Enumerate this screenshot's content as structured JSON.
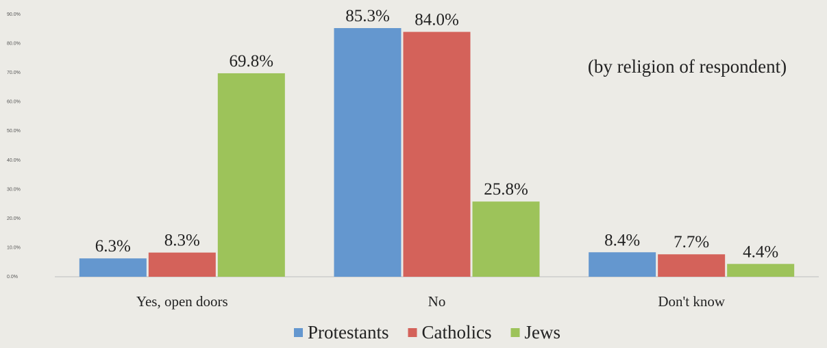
{
  "chart_data": {
    "type": "bar",
    "title": "",
    "annotation": "(by religion of respondent)",
    "xlabel": "",
    "ylabel": "",
    "ylim": [
      0,
      90
    ],
    "yticks": [
      "0.0%",
      "10.0%",
      "20.0%",
      "30.0%",
      "40.0%",
      "50.0%",
      "60.0%",
      "70.0%",
      "80.0%",
      "90.0%"
    ],
    "categories": [
      "Yes, open doors",
      "No",
      "Don't know"
    ],
    "series": [
      {
        "name": "Protestants",
        "color": "#6497cf",
        "values": [
          6.3,
          85.3,
          8.4
        ],
        "labels": [
          "6.3%",
          "85.3%",
          "8.4%"
        ]
      },
      {
        "name": "Catholics",
        "color": "#d4625a",
        "values": [
          8.3,
          84.0,
          7.7
        ],
        "labels": [
          "8.3%",
          "84.0%",
          "7.7%"
        ]
      },
      {
        "name": "Jews",
        "color": "#9dc35a",
        "values": [
          69.8,
          25.8,
          4.4
        ],
        "labels": [
          "69.8%",
          "25.8%",
          "4.4%"
        ]
      }
    ],
    "legend_position": "bottom",
    "grid": false
  }
}
